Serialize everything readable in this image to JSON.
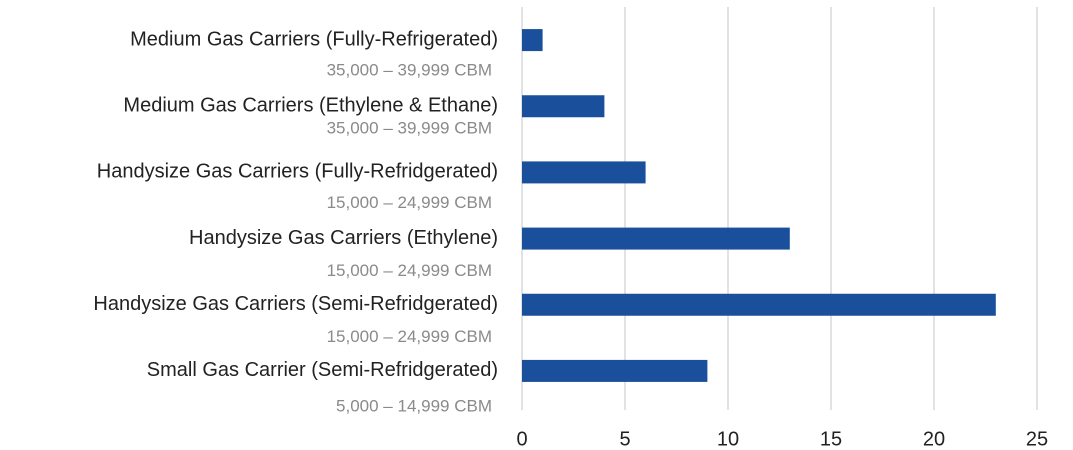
{
  "chart_data": {
    "type": "bar",
    "orientation": "horizontal",
    "categories": [
      "Medium Gas Carriers (Fully-Refrigerated)",
      "Medium Gas Carriers (Ethylene & Ethane)",
      "Handysize Gas Carriers (Fully-Refridgerated)",
      "Handysize Gas Carriers (Ethylene)",
      "Handysize Gas Carriers (Semi-Refridgerated)",
      "Small Gas Carrier (Semi-Refridgerated)"
    ],
    "category_notes": [
      "35,000 – 39,999 CBM",
      "35,000 – 39,999 CBM",
      "15,000 – 24,999 CBM",
      "15,000 – 24,999 CBM",
      "15,000 – 24,999 CBM",
      "5,000 – 14,999 CBM"
    ],
    "values": [
      1,
      4,
      6,
      13,
      23,
      9
    ],
    "color": "#1a4f9c",
    "xlim": [
      0,
      25
    ],
    "xticks": [
      0,
      5,
      10,
      15,
      20,
      25
    ],
    "grid": true
  }
}
